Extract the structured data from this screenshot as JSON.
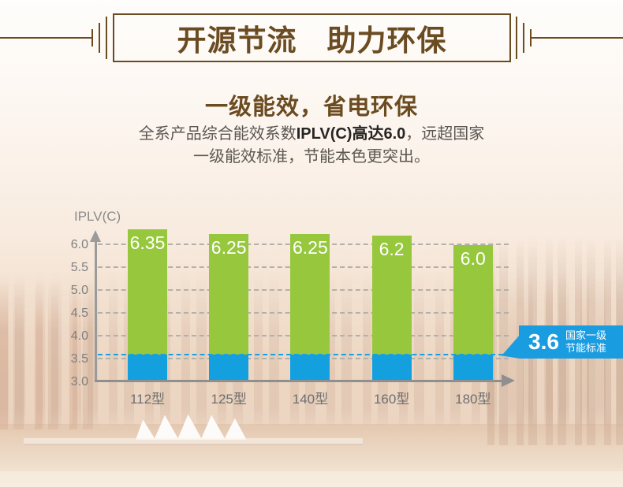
{
  "banner": {
    "title": "开源节流　助力环保"
  },
  "section": {
    "heading": "一级能效，省电环保",
    "desc": {
      "line1_pre": "全系产品综合能效系数",
      "line1_bold": "IPLV(C)高达6.0",
      "line1_post": "，远超国家",
      "line2": "一级能效标准，节能本色更突出。"
    }
  },
  "chart_data": {
    "type": "bar",
    "title": "",
    "xlabel": "",
    "ylabel": "IPLV(C)",
    "categories": [
      "112型",
      "125型",
      "140型",
      "160型",
      "180型"
    ],
    "series": [
      {
        "name": "IPLV(C)能效值",
        "values": [
          6.35,
          6.25,
          6.25,
          6.2,
          6.0
        ],
        "color": "#96c73d"
      },
      {
        "name": "国家一级节能标准基线段",
        "values": [
          3.6,
          3.6,
          3.6,
          3.6,
          3.6
        ],
        "color": "#149fdf"
      }
    ],
    "value_labels": [
      "6.35",
      "6.25",
      "6.25",
      "6.2",
      "6.0"
    ],
    "yticks": [
      3.0,
      3.5,
      4.0,
      4.5,
      5.0,
      5.5,
      6.0
    ],
    "ylim": [
      3.0,
      6.5
    ],
    "grid": true,
    "legend": "none",
    "baseline": {
      "value": 3.6,
      "label": "3.6",
      "text_line1": "国家一级",
      "text_line2": "节能标准",
      "color": "#149fdf"
    },
    "colors": {
      "bar_green": "#96c73d",
      "bar_blue": "#149fdf",
      "callout_bg": "#1a9ce1",
      "axis_gray": "#9b9b9b",
      "title_brown": "#6b4c22",
      "text_gray": "#5b5752"
    }
  }
}
